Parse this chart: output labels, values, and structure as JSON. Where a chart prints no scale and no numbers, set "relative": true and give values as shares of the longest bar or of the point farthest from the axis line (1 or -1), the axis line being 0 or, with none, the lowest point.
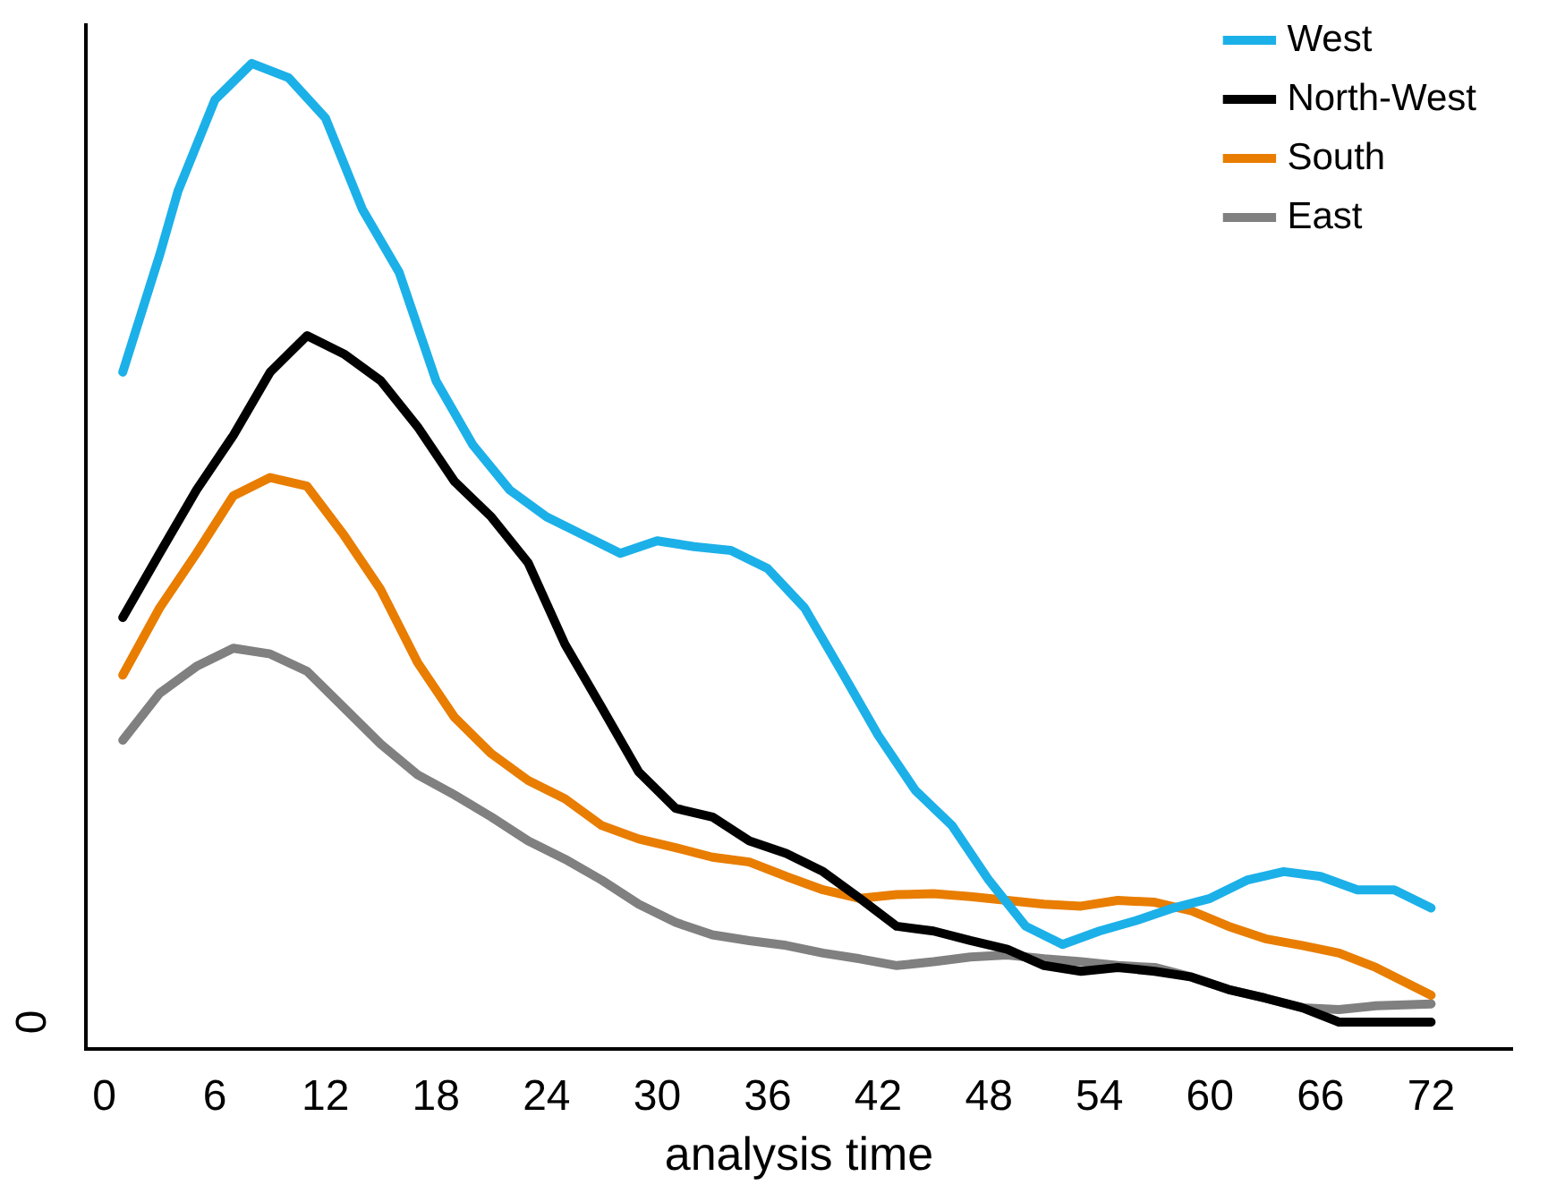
{
  "chart_data": {
    "type": "line",
    "relative": true,
    "xlabel": "analysis time",
    "annotations": [
      "0"
    ],
    "xlim": [
      -1,
      76.4
    ],
    "xticks": [
      0,
      6,
      12,
      18,
      24,
      30,
      36,
      42,
      48,
      54,
      60,
      66,
      72
    ],
    "legend": "top right",
    "marker": "none",
    "line_style": "solid",
    "series": [
      {
        "name": "West",
        "color": "#1cb0e8",
        "x": [
          1,
          3,
          4,
          6,
          8,
          10,
          12,
          14,
          16,
          18,
          20,
          22,
          24,
          26,
          28,
          30,
          32,
          34,
          36,
          38,
          40,
          42,
          44,
          46,
          48,
          50,
          52,
          54,
          56,
          58,
          60,
          62,
          64,
          66,
          68,
          70,
          72
        ],
        "values": [
          0.678,
          0.8,
          0.867,
          0.962,
          1.0,
          0.985,
          0.943,
          0.848,
          0.782,
          0.669,
          0.602,
          0.555,
          0.527,
          0.508,
          0.489,
          0.502,
          0.496,
          0.492,
          0.473,
          0.432,
          0.366,
          0.299,
          0.242,
          0.205,
          0.148,
          0.1,
          0.081,
          0.095,
          0.106,
          0.119,
          0.129,
          0.148,
          0.157,
          0.152,
          0.138,
          0.138,
          0.119
        ]
      },
      {
        "name": "North-West",
        "color": "#000000",
        "x": [
          1,
          3,
          5,
          7,
          9,
          11,
          13,
          15,
          17,
          19,
          21,
          23,
          25,
          27,
          29,
          31,
          33,
          35,
          37,
          39,
          41,
          43,
          45,
          47,
          49,
          51,
          53,
          55,
          57,
          59,
          61,
          63,
          65,
          67,
          72
        ],
        "values": [
          0.422,
          0.489,
          0.555,
          0.612,
          0.678,
          0.716,
          0.697,
          0.669,
          0.621,
          0.564,
          0.527,
          0.479,
          0.394,
          0.328,
          0.261,
          0.223,
          0.214,
          0.189,
          0.176,
          0.157,
          0.129,
          0.1,
          0.095,
          0.085,
          0.076,
          0.059,
          0.053,
          0.057,
          0.053,
          0.047,
          0.034,
          0.025,
          0.015,
          0,
          0
        ]
      },
      {
        "name": "South",
        "color": "#e87d00",
        "x": [
          1,
          3,
          5,
          7,
          9,
          11,
          13,
          15,
          17,
          19,
          21,
          23,
          25,
          27,
          29,
          31,
          33,
          35,
          37,
          39,
          41,
          43,
          45,
          47,
          49,
          51,
          53,
          55,
          57,
          59,
          61,
          63,
          65,
          67,
          69,
          72
        ],
        "values": [
          0.362,
          0.432,
          0.489,
          0.549,
          0.568,
          0.559,
          0.508,
          0.451,
          0.375,
          0.318,
          0.28,
          0.252,
          0.233,
          0.205,
          0.191,
          0.182,
          0.172,
          0.167,
          0.152,
          0.138,
          0.129,
          0.133,
          0.134,
          0.131,
          0.127,
          0.123,
          0.121,
          0.127,
          0.125,
          0.116,
          0.1,
          0.087,
          0.08,
          0.072,
          0.057,
          0.028
        ]
      },
      {
        "name": "East",
        "color": "#808080",
        "x": [
          1,
          3,
          5,
          7,
          9,
          11,
          13,
          15,
          17,
          19,
          21,
          23,
          25,
          27,
          29,
          31,
          33,
          35,
          37,
          39,
          41,
          43,
          45,
          47,
          49,
          51,
          53,
          55,
          57,
          59,
          61,
          63,
          65,
          67,
          69,
          72
        ],
        "values": [
          0.294,
          0.343,
          0.371,
          0.39,
          0.384,
          0.366,
          0.328,
          0.29,
          0.258,
          0.237,
          0.214,
          0.189,
          0.17,
          0.148,
          0.123,
          0.104,
          0.091,
          0.085,
          0.08,
          0.072,
          0.066,
          0.059,
          0.063,
          0.068,
          0.07,
          0.066,
          0.063,
          0.059,
          0.057,
          0.047,
          0.034,
          0.025,
          0.015,
          0.013,
          0.017,
          0.019
        ]
      }
    ]
  }
}
